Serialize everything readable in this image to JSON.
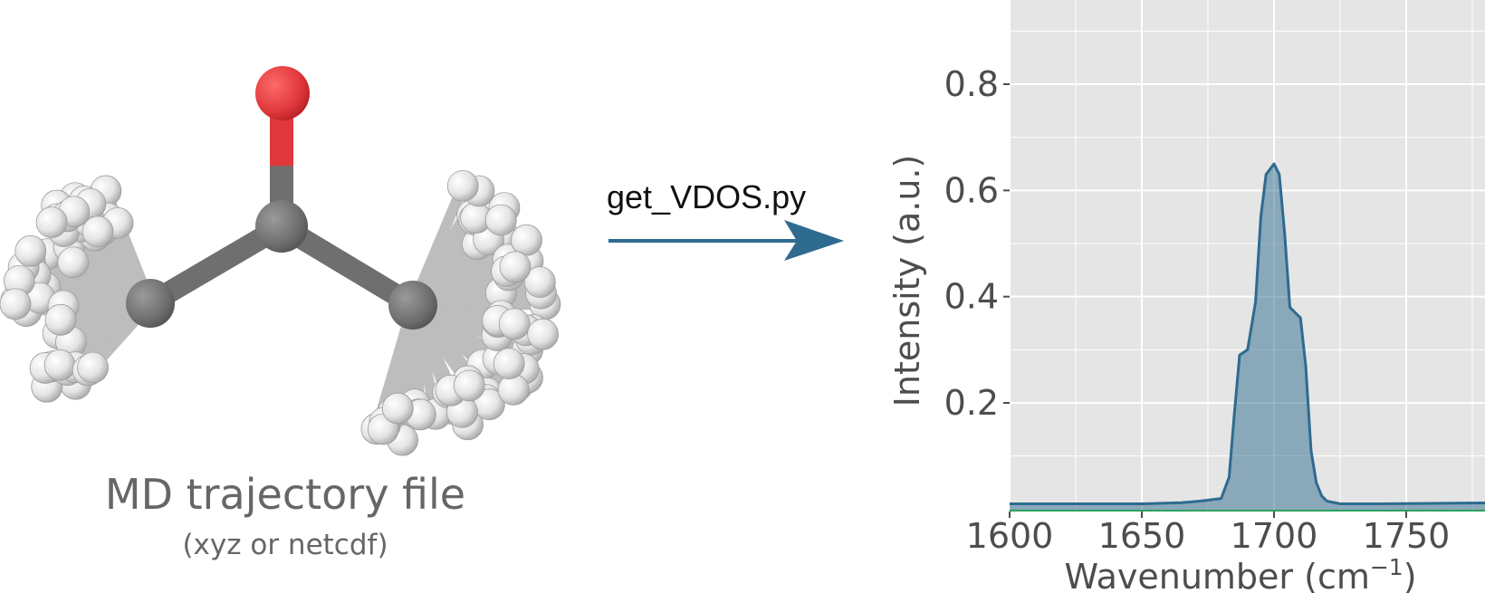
{
  "molecule": {
    "caption": "MD trajectory file",
    "subcaption": "(xyz or netcdf)",
    "colors": {
      "oxygen": "#e0383c",
      "carbon": "#6f6f6f",
      "hydrogen": "#eaeaea"
    }
  },
  "arrow": {
    "label": "get_VDOS.py",
    "color": "#2e6b8f"
  },
  "chart_data": {
    "type": "area",
    "title": "",
    "xlabel": "Wavenumber (cm",
    "xlabel_sup": "−1",
    "xlabel_end": ")",
    "ylabel": "Intensity (a.u.)",
    "xlim": [
      1600,
      1790
    ],
    "ylim": [
      0.01,
      0.96
    ],
    "xticks": [
      1600,
      1650,
      1700,
      1750
    ],
    "yticks": [
      0.2,
      0.4,
      0.6,
      0.8
    ],
    "grid": true,
    "background": "#e5e5e5",
    "fill_color": "#2e6b8f",
    "line_color": "#2e6b8f",
    "baseline_color": "#2ca25f",
    "series": [
      {
        "x": [
          1600,
          1650,
          1665,
          1672,
          1680,
          1683,
          1685,
          1687,
          1690,
          1693,
          1695,
          1697,
          1700,
          1702,
          1704,
          1706,
          1708,
          1710,
          1712,
          1714,
          1716,
          1718,
          1720,
          1725,
          1740,
          1790
        ],
        "values": [
          0.01,
          0.01,
          0.012,
          0.015,
          0.02,
          0.06,
          0.18,
          0.29,
          0.3,
          0.39,
          0.55,
          0.63,
          0.65,
          0.63,
          0.52,
          0.38,
          0.37,
          0.36,
          0.27,
          0.11,
          0.05,
          0.025,
          0.015,
          0.01,
          0.01,
          0.012
        ]
      }
    ]
  }
}
